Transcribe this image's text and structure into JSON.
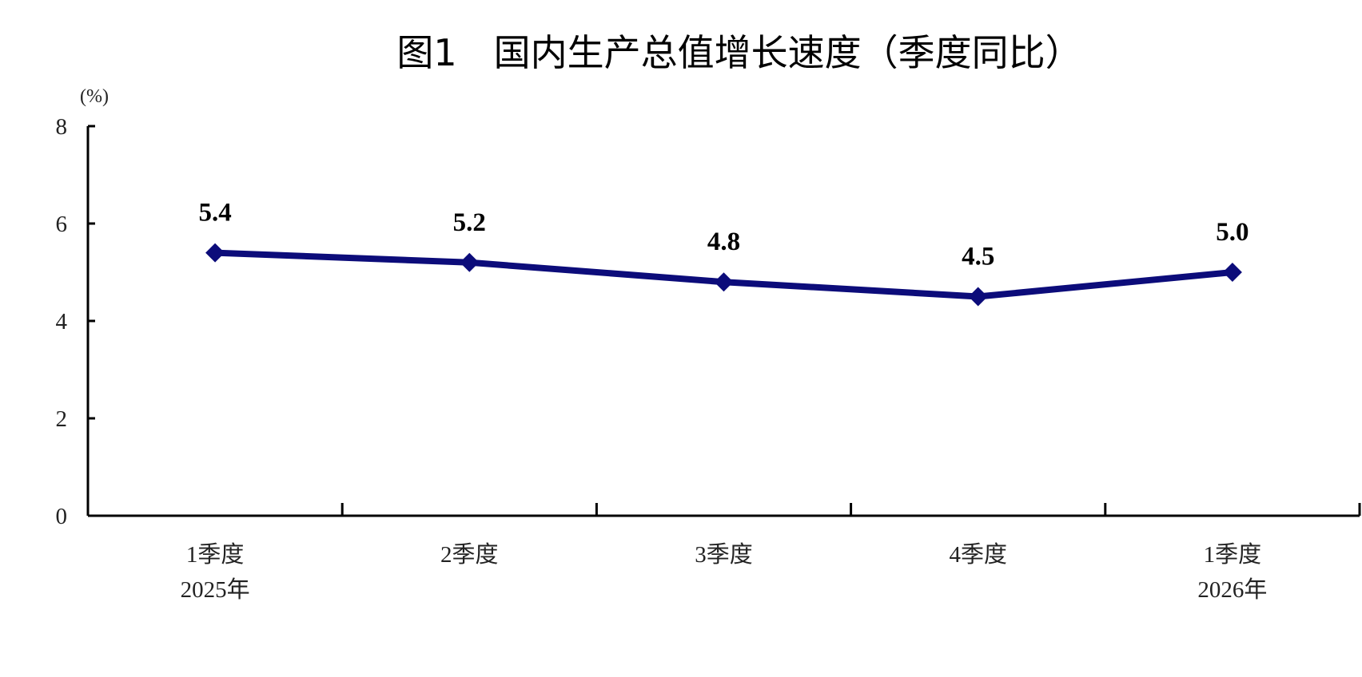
{
  "chart_data": {
    "type": "line",
    "title": "图1　国内生产总值增长速度（季度同比）",
    "ylabel": "(%)",
    "xlabel": "",
    "ylim": [
      0,
      8
    ],
    "yticks": [
      0,
      2,
      4,
      6,
      8
    ],
    "grid": false,
    "categories": [
      [
        "1季度",
        "2025年"
      ],
      [
        "2季度",
        ""
      ],
      [
        "3季度",
        ""
      ],
      [
        "4季度",
        ""
      ],
      [
        "1季度",
        "2026年"
      ]
    ],
    "series": [
      {
        "values": [
          5.4,
          5.2,
          4.8,
          4.5,
          5.0
        ],
        "data_labels": [
          "5.4",
          "5.2",
          "4.8",
          "4.5",
          "5.0"
        ],
        "color": "#0c0c7a",
        "marker": "diamond"
      }
    ]
  }
}
